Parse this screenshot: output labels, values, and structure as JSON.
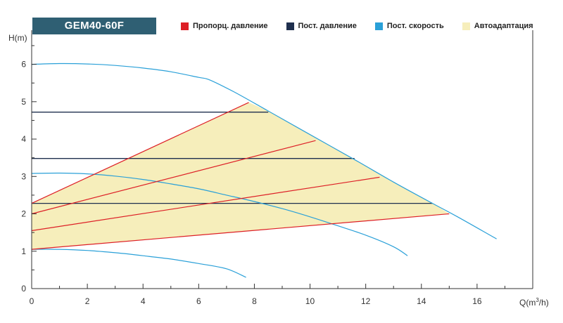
{
  "model_label": "GEM40-60F",
  "colors": {
    "prop_pressure": "#dd1f26",
    "const_pressure": "#1f2f4e",
    "const_speed": "#2aa0d8",
    "autoadapt": "#f6eebb"
  },
  "legend": [
    {
      "label": "Пропорц. давление",
      "color_key": "prop_pressure"
    },
    {
      "label": "Пост. давление",
      "color_key": "const_pressure"
    },
    {
      "label": "Пост. скорость",
      "color_key": "const_speed"
    },
    {
      "label": "Автоадаптация",
      "color_key": "autoadapt"
    }
  ],
  "chart_data": {
    "type": "line",
    "ylabel": "H(m)",
    "xlabel_main": "Q(m",
    "xlabel_sup": "3",
    "xlabel_end": "/h)",
    "xlim": [
      0,
      18
    ],
    "ylim": [
      0,
      6.8
    ],
    "xticks": [
      "0",
      "2",
      "4",
      "6",
      "8",
      "10",
      "12",
      "14",
      "16"
    ],
    "yticks": [
      "0",
      "1",
      "2",
      "3",
      "4",
      "5",
      "6"
    ],
    "grid": false,
    "series": [
      {
        "kind": "const_speed",
        "points": [
          [
            0,
            6.0
          ],
          [
            1,
            6.02
          ],
          [
            2,
            6.01
          ],
          [
            3,
            5.97
          ],
          [
            4,
            5.9
          ],
          [
            5,
            5.8
          ],
          [
            6,
            5.65
          ],
          [
            6.4,
            5.58
          ],
          [
            7.3,
            5.25
          ],
          [
            8.5,
            4.75
          ],
          [
            10,
            4.12
          ],
          [
            11.6,
            3.45
          ],
          [
            13,
            2.85
          ],
          [
            14.4,
            2.28
          ],
          [
            15.3,
            1.92
          ],
          [
            16.7,
            1.33
          ]
        ]
      },
      {
        "kind": "const_speed",
        "points": [
          [
            0,
            3.08
          ],
          [
            1,
            3.09
          ],
          [
            2,
            3.07
          ],
          [
            3,
            3.01
          ],
          [
            4,
            2.92
          ],
          [
            5,
            2.8
          ],
          [
            6,
            2.67
          ],
          [
            7,
            2.5
          ],
          [
            8,
            2.33
          ],
          [
            9,
            2.14
          ],
          [
            10,
            1.92
          ],
          [
            11,
            1.68
          ],
          [
            12,
            1.43
          ],
          [
            13,
            1.12
          ],
          [
            13.5,
            0.88
          ]
        ]
      },
      {
        "kind": "const_speed",
        "points": [
          [
            0,
            1.05
          ],
          [
            1,
            1.05
          ],
          [
            2,
            1.02
          ],
          [
            3,
            0.96
          ],
          [
            4,
            0.88
          ],
          [
            5,
            0.79
          ],
          [
            6,
            0.67
          ],
          [
            7,
            0.53
          ],
          [
            7.7,
            0.3
          ]
        ]
      },
      {
        "kind": "const_pressure",
        "points": [
          [
            0,
            4.72
          ],
          [
            8.5,
            4.72
          ]
        ]
      },
      {
        "kind": "const_pressure",
        "points": [
          [
            0,
            3.48
          ],
          [
            11.6,
            3.48
          ]
        ]
      },
      {
        "kind": "const_pressure",
        "points": [
          [
            0,
            2.28
          ],
          [
            14.4,
            2.28
          ]
        ]
      },
      {
        "kind": "prop_pressure",
        "points": [
          [
            0,
            2.28
          ],
          [
            7.8,
            4.98
          ]
        ]
      },
      {
        "kind": "prop_pressure",
        "points": [
          [
            0,
            2.0
          ],
          [
            10.2,
            3.96
          ]
        ]
      },
      {
        "kind": "prop_pressure",
        "points": [
          [
            0,
            1.55
          ],
          [
            12.5,
            2.98
          ]
        ]
      },
      {
        "kind": "prop_pressure",
        "points": [
          [
            0,
            1.05
          ],
          [
            15.0,
            2.0
          ]
        ]
      }
    ],
    "autoadapt_region": [
      [
        0,
        2.28
      ],
      [
        7.8,
        4.98
      ],
      [
        8.5,
        4.75
      ],
      [
        10,
        4.12
      ],
      [
        11.6,
        3.45
      ],
      [
        13,
        2.85
      ],
      [
        14.4,
        2.28
      ],
      [
        15.0,
        2.0
      ],
      [
        0,
        1.05
      ]
    ]
  }
}
